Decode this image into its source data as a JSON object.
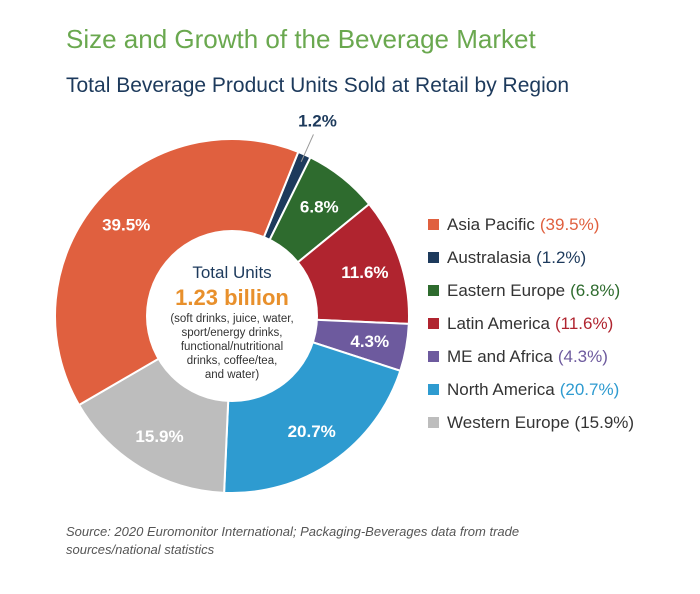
{
  "header": {
    "title": "Size and Growth of the Beverage Market",
    "subtitle": "Total Beverage Product Units Sold at Retail by Region"
  },
  "center": {
    "title": "Total Units",
    "value": "1.23 billion",
    "note_lines": [
      "(soft drinks, juice, water,",
      "sport/energy drinks,",
      "functional/nutritional",
      "drinks, coffee/tea,",
      "and water)"
    ]
  },
  "chart_data": {
    "type": "pie",
    "variant": "donut",
    "start_angle_deg": 22,
    "direction": "clockwise",
    "series": [
      {
        "name": "Australasia",
        "value": 1.2,
        "label": "1.2%",
        "legend_pct": "(1.2%)",
        "color": "#1d3a5c"
      },
      {
        "name": "Eastern Europe",
        "value": 6.8,
        "label": "6.8%",
        "legend_pct": "(6.8%)",
        "color": "#2e6b2e"
      },
      {
        "name": "Latin America",
        "value": 11.6,
        "label": "11.6%",
        "legend_pct": "(11.6%)",
        "color": "#b0242f"
      },
      {
        "name": "ME and Africa",
        "value": 4.3,
        "label": "4.3%",
        "legend_pct": "(4.3%)",
        "color": "#6d5a9e"
      },
      {
        "name": "North America",
        "value": 20.7,
        "label": "20.7%",
        "legend_pct": "(20.7%)",
        "color": "#2e9bd0"
      },
      {
        "name": "Western Europe",
        "value": 15.9,
        "label": "15.9%",
        "legend_pct": "(15.9%)",
        "color": "#bdbdbd"
      },
      {
        "name": "Asia Pacific",
        "value": 39.5,
        "label": "39.5%",
        "legend_pct": "(39.5%)",
        "color": "#e0603f"
      }
    ],
    "legend_order": [
      "Asia Pacific",
      "Australasia",
      "Eastern Europe",
      "Latin America",
      "ME and Africa",
      "North America",
      "Western Europe"
    ],
    "legend_position": "right",
    "outside_labels": [
      "Australasia"
    ]
  },
  "source": "Source: 2020 Euromonitor International; Packaging-Beverages data from trade sources/national statistics"
}
